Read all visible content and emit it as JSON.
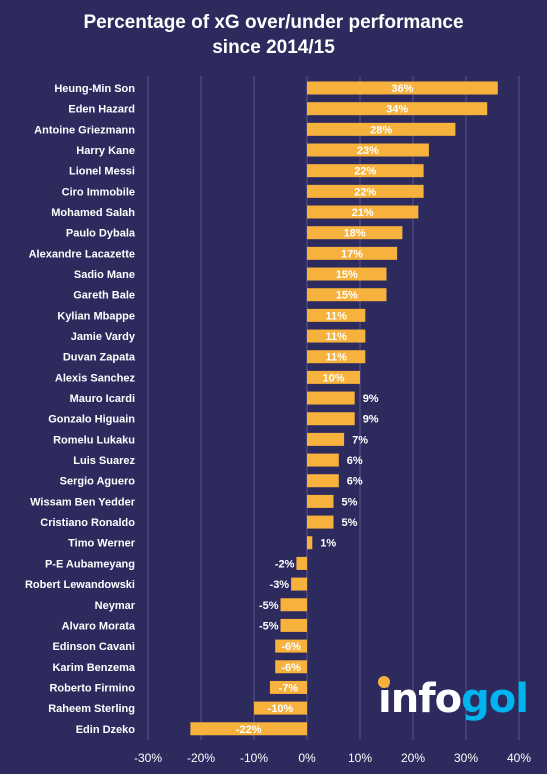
{
  "chart_data": {
    "type": "bar",
    "orientation": "horizontal",
    "title_line1": "Percentage of xG over/under performance",
    "title_line2": "since 2014/15",
    "categories": [
      "Heung-Min Son",
      "Eden Hazard",
      "Antoine Griezmann",
      "Harry Kane",
      "Lionel Messi",
      "Ciro Immobile",
      "Mohamed Salah",
      "Paulo Dybala",
      "Alexandre Lacazette",
      "Sadio Mane",
      "Gareth Bale",
      "Kylian Mbappe",
      "Jamie Vardy",
      "Duvan Zapata",
      "Alexis Sanchez",
      "Mauro Icardi",
      "Gonzalo Higuain",
      "Romelu Lukaku",
      "Luis Suarez",
      "Sergio Aguero",
      "Wissam Ben Yedder",
      "Cristiano Ronaldo",
      "Timo Werner",
      "P-E Aubameyang",
      "Robert Lewandowski",
      "Neymar",
      "Alvaro Morata",
      "Edinson Cavani",
      "Karim Benzema",
      "Roberto Firmino",
      "Raheem Sterling",
      "Edin Dzeko"
    ],
    "values": [
      36,
      34,
      28,
      23,
      22,
      22,
      21,
      18,
      17,
      15,
      15,
      11,
      11,
      11,
      10,
      9,
      9,
      7,
      6,
      6,
      5,
      5,
      1,
      -2,
      -3,
      -5,
      -5,
      -6,
      -6,
      -7,
      -10,
      -22
    ],
    "value_labels": [
      "36%",
      "34%",
      "28%",
      "23%",
      "22%",
      "22%",
      "21%",
      "18%",
      "17%",
      "15%",
      "15%",
      "11%",
      "11%",
      "11%",
      "10%",
      "9%",
      "9%",
      "7%",
      "6%",
      "6%",
      "5%",
      "5%",
      "1%",
      "-2%",
      "-3%",
      "-5%",
      "-5%",
      "-6%",
      "-6%",
      "-7%",
      "-10%",
      "-22%"
    ],
    "xlim": [
      -30,
      40
    ],
    "x_ticks": [
      -30,
      -20,
      -10,
      0,
      10,
      20,
      30,
      40
    ],
    "x_tick_labels": [
      "-30%",
      "-20%",
      "-10%",
      "0%",
      "10%",
      "20%",
      "30%",
      "40%"
    ],
    "grid": true,
    "xlabel": "",
    "ylabel": ""
  },
  "brand": {
    "logo_text_left": "info",
    "logo_text_right": "gol",
    "logo_dot_letter": "o"
  },
  "colors": {
    "background": "#2d2a5e",
    "bar": "#f6b23c",
    "grid": "#5a5790",
    "text": "#ffffff",
    "logo_left": "#ffffff",
    "logo_right": "#00b4f0",
    "logo_dot": "#f6b23c"
  }
}
